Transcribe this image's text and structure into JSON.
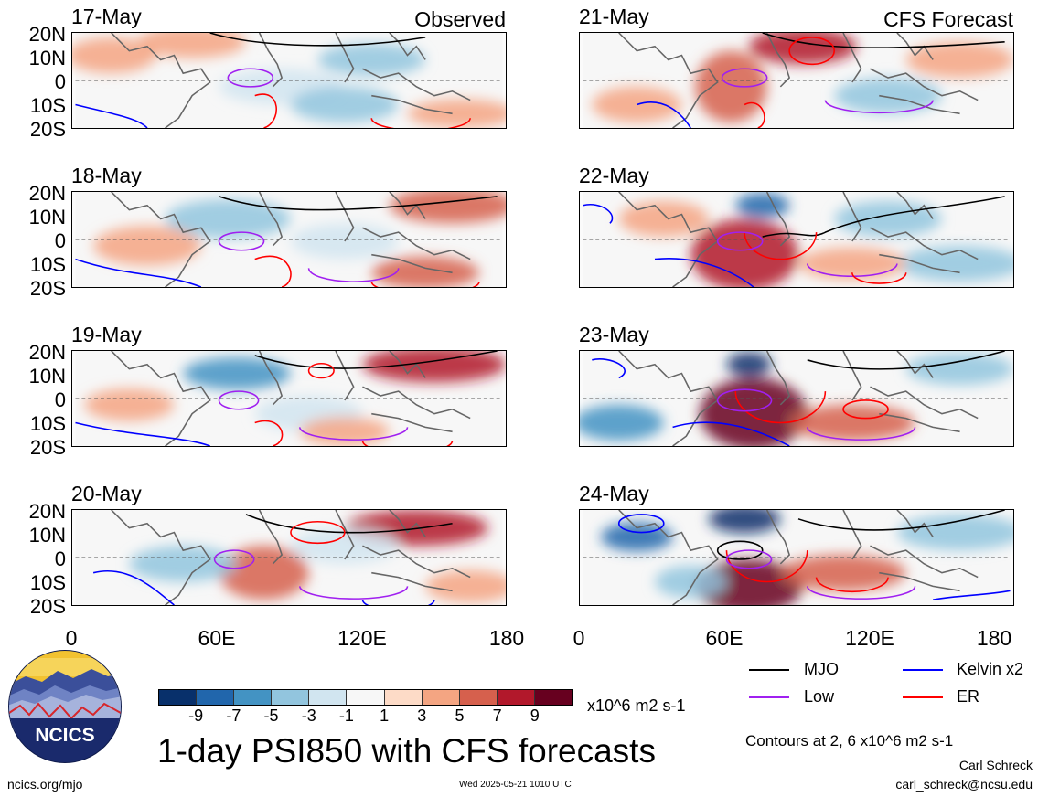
{
  "panels": {
    "left_dates": [
      "17-May",
      "18-May",
      "19-May",
      "20-May"
    ],
    "right_dates": [
      "21-May",
      "22-May",
      "23-May",
      "24-May"
    ],
    "left_label": "Observed",
    "right_label": "CFS Forecast",
    "lat_ticks": [
      "20N",
      "10N",
      "0",
      "10S",
      "20S"
    ],
    "lon_ticks": [
      "0",
      "60E",
      "120E",
      "180"
    ]
  },
  "colorbar": {
    "ticks": [
      "-9",
      "-7",
      "-5",
      "-3",
      "-1",
      "1",
      "3",
      "5",
      "7",
      "9"
    ],
    "units": "x10^6 m2 s-1",
    "colors": [
      "#08306b",
      "#2166ac",
      "#4393c3",
      "#92c5de",
      "#d1e5f0",
      "#f7f7f7",
      "#fddbc7",
      "#f4a582",
      "#d6604d",
      "#b2182b",
      "#67001f"
    ]
  },
  "legend": {
    "items": [
      {
        "label": "MJO",
        "color": "#000000"
      },
      {
        "label": "Kelvin x2",
        "color": "#0000ff"
      },
      {
        "label": "Low",
        "color": "#a020f0"
      },
      {
        "label": "ER",
        "color": "#ff0000"
      }
    ],
    "contours_note": "Contours at 2, 6 x10^6 m2 s-1"
  },
  "footer": {
    "title": "1-day PSI850 with CFS forecasts",
    "logo_text": "NCICS",
    "site": "ncics.org/mjo",
    "timestamp": "Wed 2025-05-21 1010 UTC",
    "author": "Carl Schreck",
    "email": "carl_schreck@ncsu.edu"
  }
}
